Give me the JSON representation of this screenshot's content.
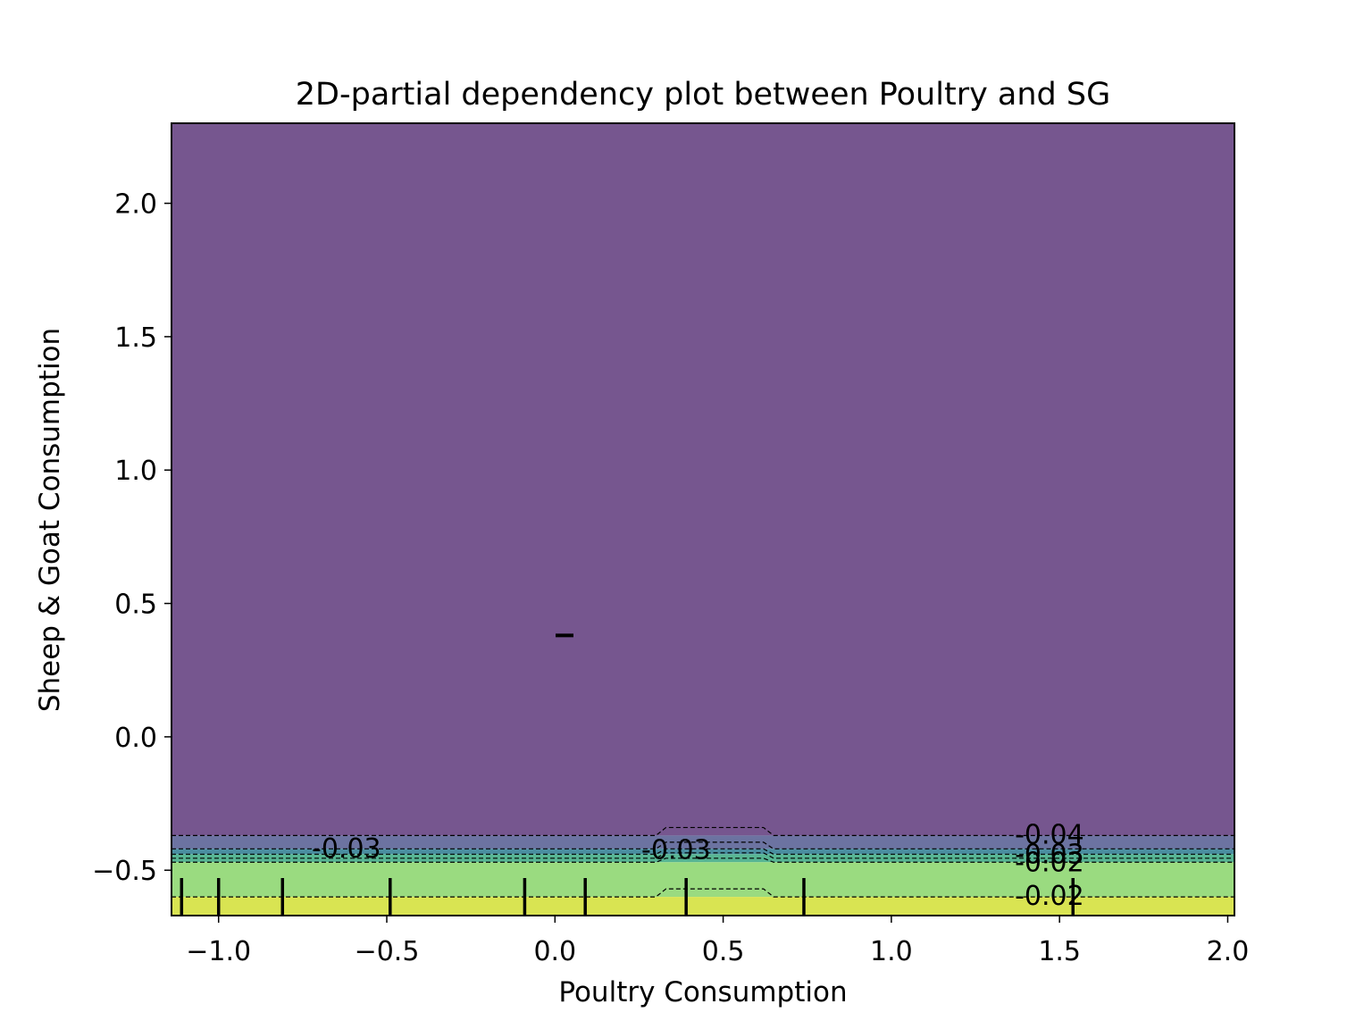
{
  "chart_data": {
    "type": "heatmap",
    "title": "2D-partial dependency plot between Poultry and SG",
    "xlabel": "Poultry Consumption",
    "ylabel": "Sheep & Goat Consumption",
    "xlim": [
      -1.14,
      2.02
    ],
    "ylim": [
      -0.67,
      2.3
    ],
    "xticks": [
      -1.0,
      -0.5,
      0.0,
      0.5,
      1.0,
      1.5,
      2.0
    ],
    "xtick_labels": [
      "−1.0",
      "−0.5",
      "0.0",
      "0.5",
      "1.0",
      "1.5",
      "2.0"
    ],
    "yticks": [
      -0.5,
      0.0,
      0.5,
      1.0,
      1.5,
      2.0
    ],
    "ytick_labels": [
      "−0.5",
      "0.0",
      "0.5",
      "1.0",
      "1.5",
      "2.0"
    ],
    "grid": false,
    "colormap": "viridis",
    "bands": [
      {
        "y_from": -0.37,
        "y_to": 2.3,
        "color": "#76568f"
      },
      {
        "y_from": -0.42,
        "y_to": -0.37,
        "color": "#6c73a1"
      },
      {
        "y_from": -0.44,
        "y_to": -0.42,
        "color": "#4a8ea0"
      },
      {
        "y_from": -0.47,
        "y_to": -0.44,
        "color": "#57b593"
      },
      {
        "y_from": -0.6,
        "y_to": -0.47,
        "color": "#9adb80"
      },
      {
        "y_from": -0.67,
        "y_to": -0.6,
        "color": "#d9e452"
      }
    ],
    "contour_levels": [
      {
        "y": -0.37,
        "bump": 0.03
      },
      {
        "y": -0.42,
        "bump": 0.025
      },
      {
        "y": -0.44,
        "bump": 0.02
      },
      {
        "y": -0.455,
        "bump": 0.02
      },
      {
        "y": -0.47,
        "bump": 0.015
      },
      {
        "y": -0.6,
        "bump": 0.03
      }
    ],
    "contour_bump_x": [
      0.3,
      0.65
    ],
    "contour_labels": [
      {
        "text": "-0.03",
        "x": -0.62,
        "y": -0.415
      },
      {
        "text": "-0.03",
        "x": 0.36,
        "y": -0.42
      },
      {
        "text": "-0.04",
        "x": 1.47,
        "y": -0.363
      },
      {
        "text": "-0.03",
        "x": 1.47,
        "y": -0.438
      },
      {
        "text": "-0.02",
        "x": 1.47,
        "y": -0.468
      },
      {
        "text": "-0.02",
        "x": 1.47,
        "y": -0.593
      }
    ],
    "rug_x": [
      -1.11,
      -1.0,
      -0.81,
      -0.49,
      -0.09,
      0.09,
      0.39,
      0.74,
      1.54
    ],
    "rug_y": [
      0.38
    ]
  }
}
